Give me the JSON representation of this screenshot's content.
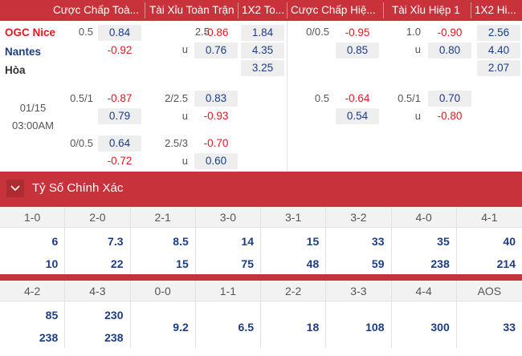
{
  "header": {
    "cols": [
      "Cược Chấp Toà...",
      "Tài Xỉu Toàn Trận",
      "1X2 To...",
      "Cược Chấp Hiệ...",
      "Tài Xỉu Hiệp 1",
      "1X2 Hi..."
    ]
  },
  "teams": {
    "home": "OGC Nice",
    "away": "Nantes",
    "draw": "Hòa"
  },
  "match": {
    "date": "01/15",
    "time": "03:00AM"
  },
  "main_odds": {
    "row1": {
      "hdp_line": "0.5",
      "hdp_home": "0.84",
      "hdp_away": "-0.92",
      "ou_line": "2.5",
      "ou_over": "-0.86",
      "ou_u": "u",
      "ou_under": "0.76",
      "x12_home": "1.84",
      "x12_away": "4.35",
      "x12_draw": "3.25",
      "h1_hdp_line": "0/0.5",
      "h1_hdp_home": "-0.95",
      "h1_hdp_away": "0.85",
      "h1_ou_line": "1.0",
      "h1_ou_over": "-0.90",
      "h1_ou_u": "u",
      "h1_ou_under": "0.80",
      "h1_x12_home": "2.56",
      "h1_x12_away": "4.40",
      "h1_x12_draw": "2.07"
    },
    "row2": {
      "hdp_line": "0.5/1",
      "hdp_home": "-0.87",
      "hdp_away": "0.79",
      "ou_line": "2/2.5",
      "ou_over": "0.83",
      "ou_u": "u",
      "ou_under": "-0.93",
      "h1_hdp_line": "0.5",
      "h1_hdp_home": "-0.64",
      "h1_hdp_away": "0.54",
      "h1_ou_line": "0.5/1",
      "h1_ou_over": "0.70",
      "h1_ou_u": "u",
      "h1_ou_under": "-0.80"
    },
    "row3": {
      "hdp_line": "0/0.5",
      "hdp_home": "0.64",
      "hdp_away": "-0.72",
      "ou_line": "2.5/3",
      "ou_over": "-0.70",
      "ou_u": "u",
      "ou_under": "0.60"
    }
  },
  "exact_score": {
    "title": "Tỷ Số Chính Xác",
    "row1": [
      {
        "score": "1-0",
        "home": "6",
        "away": "10"
      },
      {
        "score": "2-0",
        "home": "7.3",
        "away": "22"
      },
      {
        "score": "2-1",
        "home": "8.5",
        "away": "15"
      },
      {
        "score": "3-0",
        "home": "14",
        "away": "75"
      },
      {
        "score": "3-1",
        "home": "15",
        "away": "48"
      },
      {
        "score": "3-2",
        "home": "33",
        "away": "59"
      },
      {
        "score": "4-0",
        "home": "35",
        "away": "238"
      },
      {
        "score": "4-1",
        "home": "40",
        "away": "214"
      }
    ],
    "row2": [
      {
        "score": "4-2",
        "home": "85",
        "away": "238"
      },
      {
        "score": "4-3",
        "home": "230",
        "away": "238"
      },
      {
        "score": "0-0",
        "single": "9.2"
      },
      {
        "score": "1-1",
        "single": "6.5"
      },
      {
        "score": "2-2",
        "single": "18"
      },
      {
        "score": "3-3",
        "single": "108"
      },
      {
        "score": "4-4",
        "single": "300"
      },
      {
        "score": "AOS",
        "single": "33"
      }
    ]
  },
  "colors": {
    "accent": "#c8323a",
    "odds_blue": "#1c3d86",
    "odds_red": "#e3191f"
  }
}
